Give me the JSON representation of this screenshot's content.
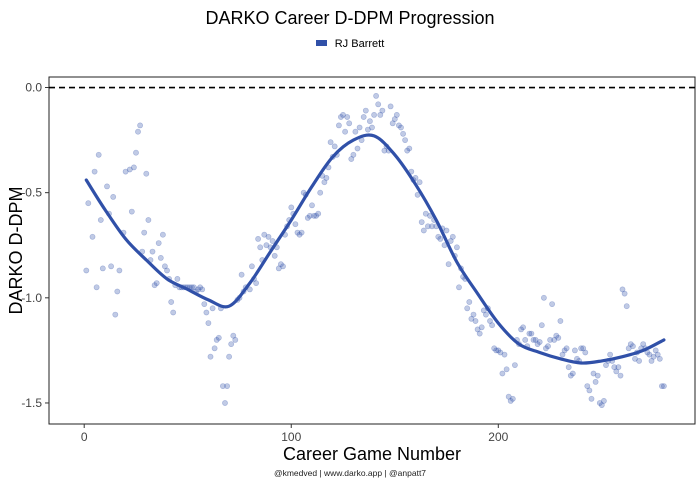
{
  "chart_data": {
    "type": "scatter",
    "title": "DARKO Career D-DPM Progression",
    "xlabel": "Career Game Number",
    "ylabel": "DARKO D-DPM",
    "caption": "@kmedved | www.darko.app | @anpatt7",
    "xlim": [
      -17,
      295
    ],
    "ylim": [
      -1.6,
      0.05
    ],
    "x_ticks": [
      0,
      100,
      200
    ],
    "y_ticks": [
      0.0,
      -0.5,
      -1.0,
      -1.5
    ],
    "x_tick_labels": [
      "0",
      "100",
      "200"
    ],
    "y_tick_labels": [
      "0.0",
      "-0.5",
      "-1.0",
      "-1.5"
    ],
    "reference_line": {
      "y": 0.0,
      "style": "dashed"
    },
    "grid": false,
    "legend_position": "top",
    "series": [
      {
        "name": "RJ Barrett",
        "color": "#3050a8",
        "points": [
          [
            1,
            -0.87
          ],
          [
            2,
            -0.55
          ],
          [
            4,
            -0.71
          ],
          [
            5,
            -0.4
          ],
          [
            6,
            -0.95
          ],
          [
            7,
            -0.32
          ],
          [
            8,
            -0.63
          ],
          [
            9,
            -0.86
          ],
          [
            11,
            -0.47
          ],
          [
            12,
            -0.6
          ],
          [
            13,
            -0.85
          ],
          [
            14,
            -0.52
          ],
          [
            15,
            -1.08
          ],
          [
            16,
            -0.97
          ],
          [
            17,
            -0.87
          ],
          [
            19,
            -0.69
          ],
          [
            20,
            -0.4
          ],
          [
            22,
            -0.39
          ],
          [
            23,
            -0.59
          ],
          [
            24,
            -0.38
          ],
          [
            25,
            -0.31
          ],
          [
            26,
            -0.21
          ],
          [
            27,
            -0.18
          ],
          [
            28,
            -0.78
          ],
          [
            29,
            -0.69
          ],
          [
            30,
            -0.41
          ],
          [
            31,
            -0.63
          ],
          [
            32,
            -0.82
          ],
          [
            33,
            -0.78
          ],
          [
            34,
            -0.94
          ],
          [
            35,
            -0.93
          ],
          [
            36,
            -0.74
          ],
          [
            37,
            -0.81
          ],
          [
            38,
            -0.7
          ],
          [
            39,
            -0.85
          ],
          [
            40,
            -0.87
          ],
          [
            41,
            -0.91
          ],
          [
            42,
            -1.02
          ],
          [
            43,
            -1.07
          ],
          [
            44,
            -0.94
          ],
          [
            45,
            -0.91
          ],
          [
            46,
            -0.95
          ],
          [
            47,
            -0.95
          ],
          [
            48,
            -0.95
          ],
          [
            49,
            -0.95
          ],
          [
            50,
            -0.95
          ],
          [
            51,
            -0.95
          ],
          [
            52,
            -0.95
          ],
          [
            53,
            -0.95
          ],
          [
            54,
            -0.97
          ],
          [
            55,
            -0.96
          ],
          [
            56,
            -0.95
          ],
          [
            57,
            -0.96
          ],
          [
            58,
            -1.03
          ],
          [
            59,
            -1.07
          ],
          [
            60,
            -1.12
          ],
          [
            61,
            -1.28
          ],
          [
            62,
            -1.05
          ],
          [
            63,
            -1.24
          ],
          [
            64,
            -1.2
          ],
          [
            65,
            -1.19
          ],
          [
            66,
            -1.05
          ],
          [
            67,
            -1.42
          ],
          [
            68,
            -1.5
          ],
          [
            69,
            -1.42
          ],
          [
            70,
            -1.28
          ],
          [
            71,
            -1.22
          ],
          [
            72,
            -1.18
          ],
          [
            73,
            -1.2
          ],
          [
            74,
            -1.01
          ],
          [
            75,
            -1.0
          ],
          [
            76,
            -0.89
          ],
          [
            77,
            -0.97
          ],
          [
            78,
            -0.95
          ],
          [
            80,
            -0.96
          ],
          [
            81,
            -0.85
          ],
          [
            82,
            -0.91
          ],
          [
            83,
            -0.93
          ],
          [
            84,
            -0.72
          ],
          [
            85,
            -0.76
          ],
          [
            86,
            -0.82
          ],
          [
            87,
            -0.7
          ],
          [
            88,
            -0.75
          ],
          [
            89,
            -0.71
          ],
          [
            90,
            -0.76
          ],
          [
            91,
            -0.73
          ],
          [
            92,
            -0.8
          ],
          [
            93,
            -0.76
          ],
          [
            94,
            -0.86
          ],
          [
            95,
            -0.84
          ],
          [
            96,
            -0.85
          ],
          [
            97,
            -0.7
          ],
          [
            98,
            -0.66
          ],
          [
            99,
            -0.63
          ],
          [
            100,
            -0.57
          ],
          [
            101,
            -0.6
          ],
          [
            102,
            -0.65
          ],
          [
            103,
            -0.69
          ],
          [
            104,
            -0.7
          ],
          [
            105,
            -0.69
          ],
          [
            106,
            -0.5
          ],
          [
            107,
            -0.51
          ],
          [
            108,
            -0.62
          ],
          [
            109,
            -0.61
          ],
          [
            110,
            -0.56
          ],
          [
            111,
            -0.61
          ],
          [
            112,
            -0.61
          ],
          [
            113,
            -0.6
          ],
          [
            114,
            -0.5
          ],
          [
            115,
            -0.42
          ],
          [
            116,
            -0.45
          ],
          [
            117,
            -0.43
          ],
          [
            118,
            -0.38
          ],
          [
            119,
            -0.26
          ],
          [
            120,
            -0.33
          ],
          [
            121,
            -0.28
          ],
          [
            122,
            -0.32
          ],
          [
            123,
            -0.18
          ],
          [
            124,
            -0.14
          ],
          [
            125,
            -0.13
          ],
          [
            126,
            -0.21
          ],
          [
            127,
            -0.14
          ],
          [
            128,
            -0.17
          ],
          [
            129,
            -0.34
          ],
          [
            130,
            -0.32
          ],
          [
            131,
            -0.21
          ],
          [
            132,
            -0.29
          ],
          [
            133,
            -0.19
          ],
          [
            134,
            -0.25
          ],
          [
            135,
            -0.14
          ],
          [
            136,
            -0.11
          ],
          [
            137,
            -0.2
          ],
          [
            138,
            -0.16
          ],
          [
            139,
            -0.19
          ],
          [
            140,
            -0.13
          ],
          [
            141,
            -0.04
          ],
          [
            142,
            -0.08
          ],
          [
            143,
            -0.13
          ],
          [
            144,
            -0.11
          ],
          [
            145,
            -0.3
          ],
          [
            146,
            -0.28
          ],
          [
            147,
            -0.3
          ],
          [
            148,
            -0.09
          ],
          [
            149,
            -0.17
          ],
          [
            150,
            -0.15
          ],
          [
            151,
            -0.13
          ],
          [
            152,
            -0.18
          ],
          [
            153,
            -0.19
          ],
          [
            154,
            -0.22
          ],
          [
            155,
            -0.25
          ],
          [
            156,
            -0.3
          ],
          [
            157,
            -0.29
          ],
          [
            158,
            -0.4
          ],
          [
            159,
            -0.44
          ],
          [
            160,
            -0.43
          ],
          [
            161,
            -0.51
          ],
          [
            162,
            -0.45
          ],
          [
            163,
            -0.64
          ],
          [
            164,
            -0.68
          ],
          [
            165,
            -0.6
          ],
          [
            166,
            -0.66
          ],
          [
            167,
            -0.61
          ],
          [
            168,
            -0.66
          ],
          [
            169,
            -0.63
          ],
          [
            170,
            -0.66
          ],
          [
            171,
            -0.71
          ],
          [
            172,
            -0.72
          ],
          [
            173,
            -0.67
          ],
          [
            174,
            -0.75
          ],
          [
            175,
            -0.68
          ],
          [
            176,
            -0.84
          ],
          [
            177,
            -0.73
          ],
          [
            178,
            -0.71
          ],
          [
            179,
            -0.8
          ],
          [
            180,
            -0.76
          ],
          [
            181,
            -0.95
          ],
          [
            182,
            -0.86
          ],
          [
            183,
            -0.9
          ],
          [
            184,
            -0.91
          ],
          [
            185,
            -1.05
          ],
          [
            186,
            -1.02
          ],
          [
            187,
            -1.1
          ],
          [
            188,
            -1.08
          ],
          [
            189,
            -1.11
          ],
          [
            190,
            -1.15
          ],
          [
            191,
            -1.17
          ],
          [
            192,
            -1.14
          ],
          [
            193,
            -1.06
          ],
          [
            194,
            -1.08
          ],
          [
            195,
            -1.05
          ],
          [
            196,
            -1.11
          ],
          [
            197,
            -1.13
          ],
          [
            198,
            -1.24
          ],
          [
            199,
            -1.25
          ],
          [
            200,
            -1.25
          ],
          [
            201,
            -1.26
          ],
          [
            202,
            -1.36
          ],
          [
            203,
            -1.27
          ],
          [
            204,
            -1.34
          ],
          [
            205,
            -1.47
          ],
          [
            206,
            -1.49
          ],
          [
            207,
            -1.48
          ],
          [
            208,
            -1.32
          ],
          [
            209,
            -1.2
          ],
          [
            210,
            -1.22
          ],
          [
            211,
            -1.15
          ],
          [
            212,
            -1.14
          ],
          [
            213,
            -1.2
          ],
          [
            214,
            -1.23
          ],
          [
            215,
            -1.17
          ],
          [
            216,
            -1.17
          ],
          [
            217,
            -1.2
          ],
          [
            218,
            -1.2
          ],
          [
            219,
            -1.22
          ],
          [
            220,
            -1.21
          ],
          [
            221,
            -1.13
          ],
          [
            222,
            -1.0
          ],
          [
            223,
            -1.24
          ],
          [
            224,
            -1.23
          ],
          [
            225,
            -1.2
          ],
          [
            226,
            -1.03
          ],
          [
            227,
            -1.2
          ],
          [
            228,
            -1.18
          ],
          [
            229,
            -1.19
          ],
          [
            230,
            -1.11
          ],
          [
            231,
            -1.27
          ],
          [
            232,
            -1.25
          ],
          [
            233,
            -1.24
          ],
          [
            234,
            -1.33
          ],
          [
            235,
            -1.37
          ],
          [
            236,
            -1.36
          ],
          [
            237,
            -1.25
          ],
          [
            238,
            -1.29
          ],
          [
            239,
            -1.3
          ],
          [
            240,
            -1.24
          ],
          [
            241,
            -1.24
          ],
          [
            242,
            -1.26
          ],
          [
            243,
            -1.42
          ],
          [
            244,
            -1.44
          ],
          [
            245,
            -1.48
          ],
          [
            246,
            -1.36
          ],
          [
            247,
            -1.4
          ],
          [
            248,
            -1.37
          ],
          [
            249,
            -1.5
          ],
          [
            250,
            -1.51
          ],
          [
            251,
            -1.49
          ],
          [
            252,
            -1.32
          ],
          [
            253,
            -1.3
          ],
          [
            254,
            -1.27
          ],
          [
            255,
            -1.3
          ],
          [
            256,
            -1.33
          ],
          [
            257,
            -1.35
          ],
          [
            258,
            -1.33
          ],
          [
            259,
            -1.37
          ],
          [
            260,
            -0.96
          ],
          [
            261,
            -0.98
          ],
          [
            262,
            -1.04
          ],
          [
            263,
            -1.24
          ],
          [
            264,
            -1.22
          ],
          [
            265,
            -1.23
          ],
          [
            266,
            -1.29
          ],
          [
            267,
            -1.26
          ],
          [
            268,
            -1.3
          ],
          [
            269,
            -1.24
          ],
          [
            270,
            -1.22
          ],
          [
            271,
            -1.24
          ],
          [
            272,
            -1.26
          ],
          [
            273,
            -1.27
          ],
          [
            274,
            -1.3
          ],
          [
            275,
            -1.28
          ],
          [
            276,
            -1.25
          ],
          [
            277,
            -1.27
          ],
          [
            278,
            -1.29
          ],
          [
            279,
            -1.42
          ],
          [
            280,
            -1.42
          ]
        ]
      }
    ],
    "trend": {
      "name": "RJ Barrett smoothed",
      "x": [
        1,
        10,
        20,
        30,
        40,
        50,
        60,
        70,
        80,
        90,
        100,
        110,
        120,
        130,
        140,
        150,
        160,
        170,
        180,
        190,
        200,
        210,
        220,
        230,
        240,
        250,
        260,
        270,
        280
      ],
      "y": [
        -0.44,
        -0.58,
        -0.72,
        -0.82,
        -0.91,
        -0.96,
        -1.01,
        -1.04,
        -0.93,
        -0.78,
        -0.63,
        -0.47,
        -0.33,
        -0.25,
        -0.23,
        -0.32,
        -0.46,
        -0.63,
        -0.83,
        -0.98,
        -1.12,
        -1.22,
        -1.26,
        -1.29,
        -1.31,
        -1.3,
        -1.28,
        -1.25,
        -1.2
      ]
    }
  }
}
